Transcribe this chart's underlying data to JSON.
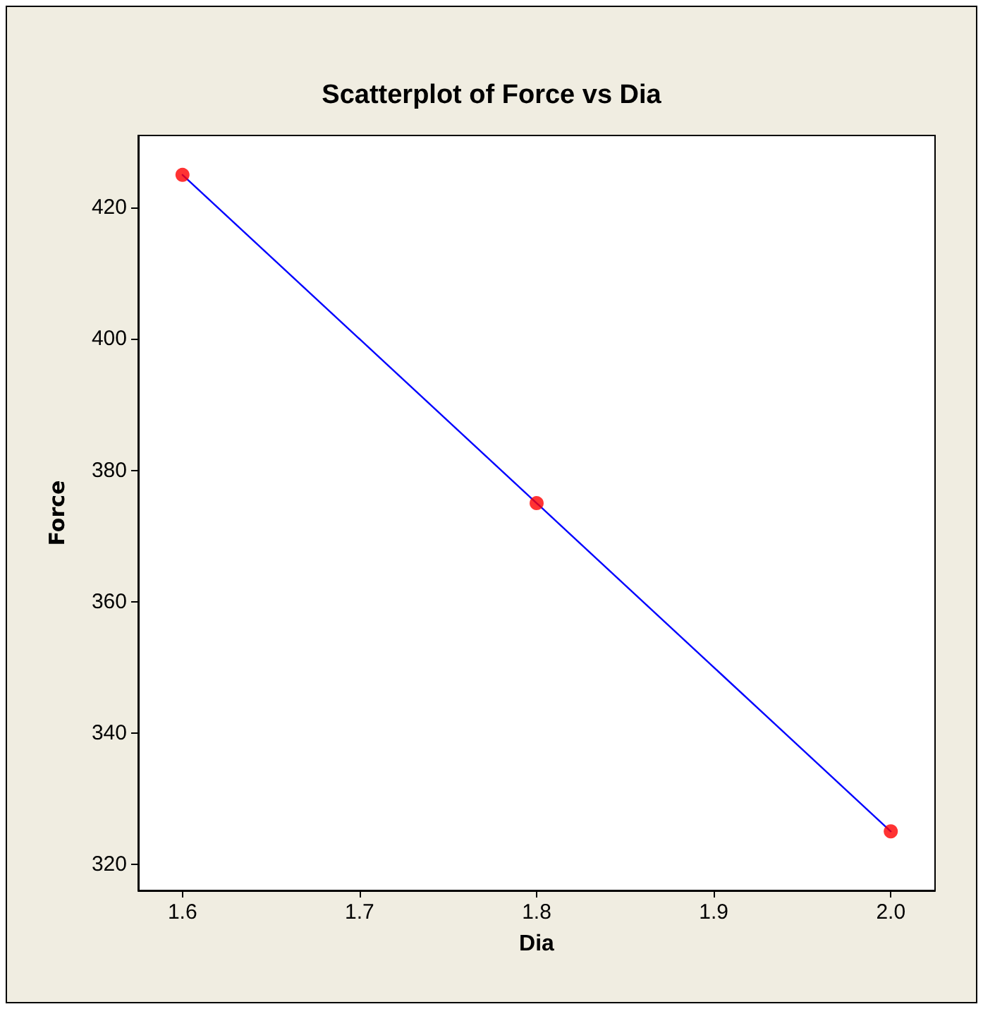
{
  "chart_data": {
    "type": "scatter",
    "title": "Scatterplot of Force vs Dia",
    "xlabel": "Dia",
    "ylabel": "Force",
    "x": [
      1.6,
      1.8,
      2.0
    ],
    "series": [
      {
        "type": "line",
        "color": "#0000ff",
        "marker": "none",
        "values": [
          425,
          375,
          325
        ]
      },
      {
        "color": "#ff0000",
        "marker": "circle",
        "values": [
          425,
          375,
          325
        ]
      }
    ],
    "xlim": [
      1.575,
      2.025
    ],
    "xticks": [
      {
        "value": 1.6,
        "label": "1.6"
      },
      {
        "value": 1.7,
        "label": "1.7"
      },
      {
        "value": 1.8,
        "label": "1.8"
      },
      {
        "value": 1.9,
        "label": "1.9"
      },
      {
        "value": 2.0,
        "label": "2.0"
      }
    ],
    "ylim": [
      316,
      431
    ],
    "yticks": [
      320,
      340,
      360,
      380,
      400,
      420
    ],
    "grid": false
  }
}
